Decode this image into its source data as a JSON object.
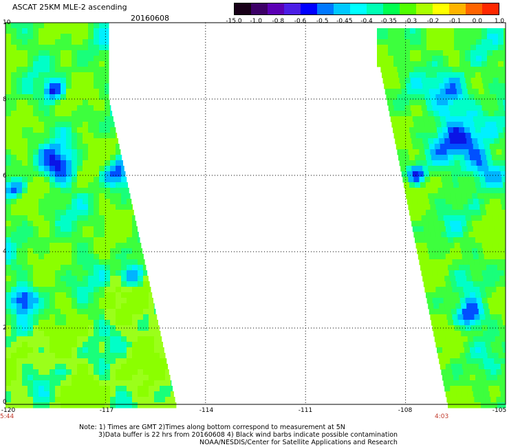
{
  "header": {
    "title": "ASCAT 25KM MLE-2 ascending",
    "date": "20160608"
  },
  "colorbar": {
    "labels": [
      "-15.0",
      "-1.0",
      "-0.8",
      "-0.6",
      "-0.5",
      "-0.45",
      "-0.4",
      "-0.35",
      "-0.3",
      "-0.2",
      "-0.1",
      "0.0",
      "1.0"
    ],
    "colors": [
      "#170017",
      "#3c0066",
      "#5a00b4",
      "#4b1ee6",
      "#0000ff",
      "#0078ff",
      "#00c8ff",
      "#00ffff",
      "#00ffb4",
      "#00ff50",
      "#50ff00",
      "#aaff00",
      "#ffff00",
      "#ffb400",
      "#ff6400",
      "#ff2800"
    ]
  },
  "map": {
    "y_ticks": [
      "10",
      "8",
      "6",
      "4",
      "2",
      "0"
    ],
    "x_ticks": [
      "-120",
      "-117",
      "-114",
      "-111",
      "-108",
      "-105"
    ],
    "lon_range": [
      -120,
      -105
    ],
    "lat_range": [
      0,
      10
    ],
    "times": [
      "5:44",
      "4:03"
    ]
  },
  "footer": {
    "line1": "Note: 1) Times are GMT 2)Times along bottom correspond to measurement at 5N",
    "line2": "3)Data buffer is 22 hrs from 20160608 4) Black wind barbs indicate possible contamination",
    "line3": "NOAA/NESDIS/Center for Satellite Applications and Research"
  }
}
